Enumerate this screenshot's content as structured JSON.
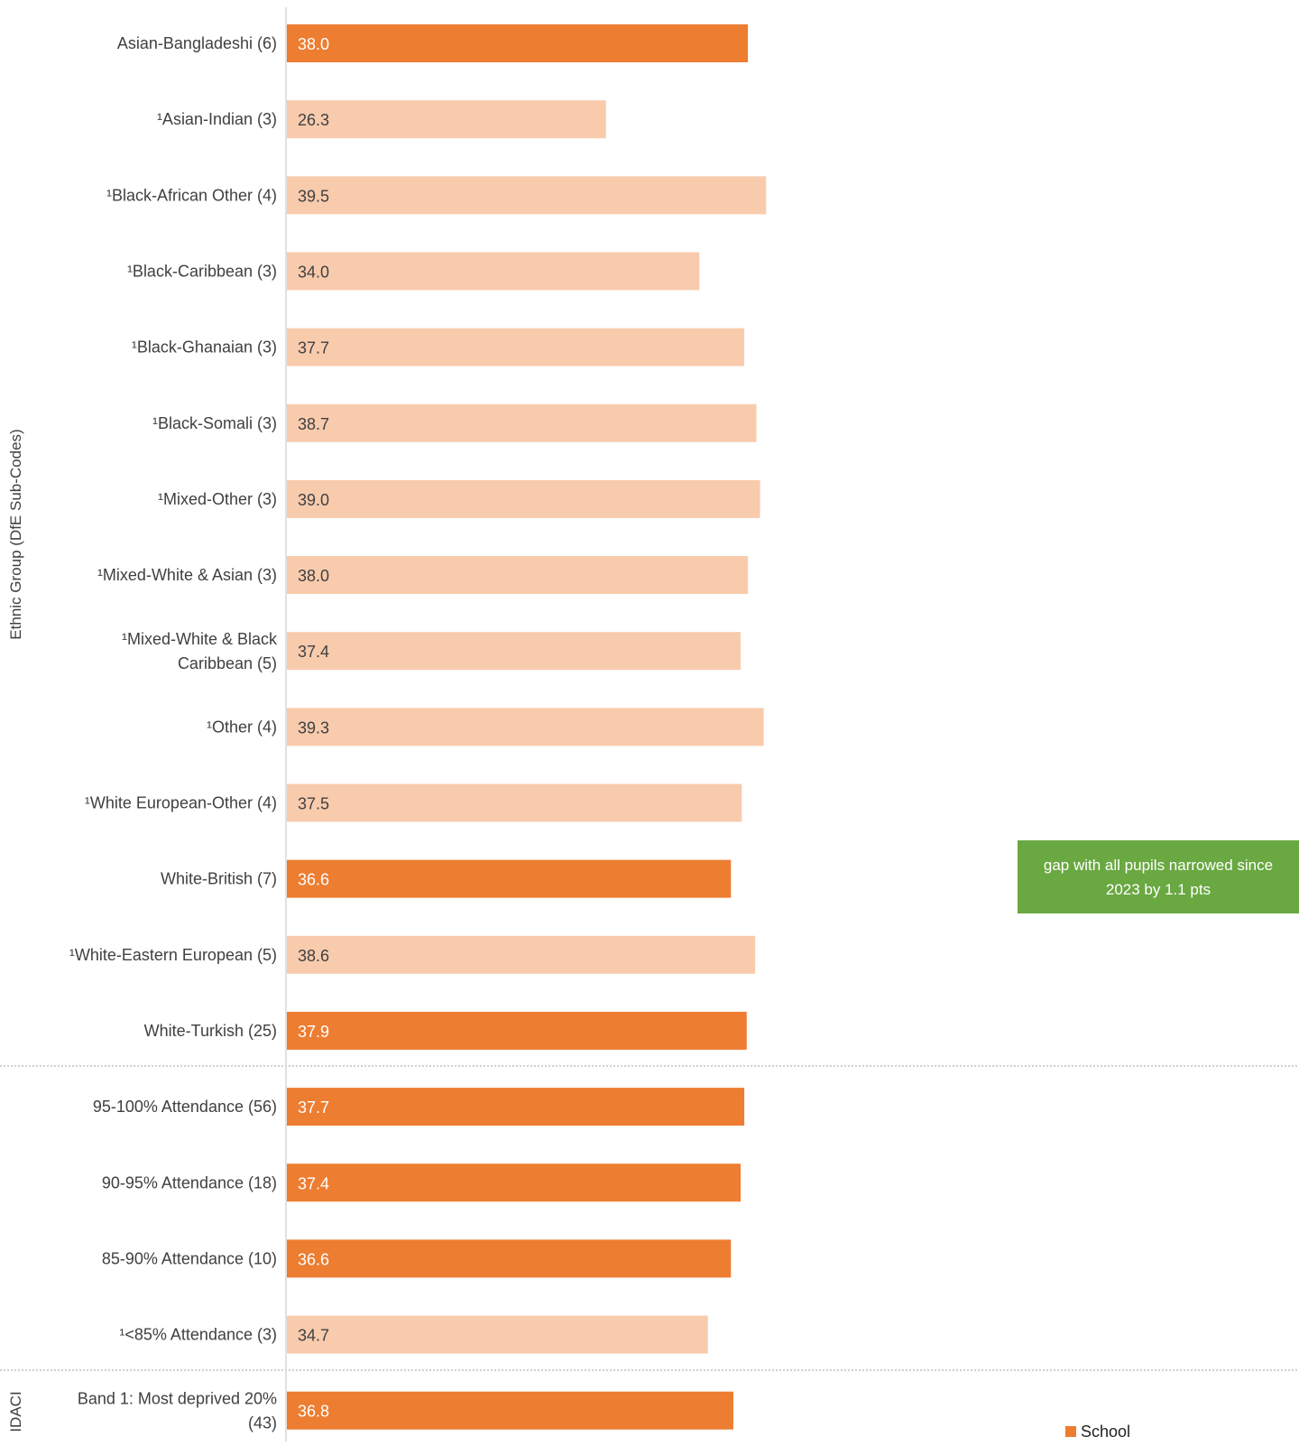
{
  "chart_data": {
    "type": "bar",
    "orientation": "horizontal",
    "xlim": [
      0,
      100
    ],
    "groups": [
      {
        "label": "Ethnic Group (DfE Sub-Codes)",
        "rows": [
          0,
          13
        ]
      },
      {
        "label": "",
        "rows": [
          14,
          17
        ]
      },
      {
        "label": "IDACI",
        "rows": [
          18,
          18
        ]
      }
    ],
    "categories": [
      [
        "Asian-Bangladeshi (6)"
      ],
      [
        "¹Asian-Indian (3)"
      ],
      [
        "¹Black-African Other (4)"
      ],
      [
        "¹Black-Caribbean (3)"
      ],
      [
        "¹Black-Ghanaian (3)"
      ],
      [
        "¹Black-Somali (3)"
      ],
      [
        "¹Mixed-Other (3)"
      ],
      [
        "¹Mixed-White & Asian (3)"
      ],
      [
        "¹Mixed-White & Black",
        "Caribbean (5)"
      ],
      [
        "¹Other (4)"
      ],
      [
        "¹White European-Other (4)"
      ],
      [
        "White-British (7)"
      ],
      [
        "¹White-Eastern European (5)"
      ],
      [
        "White-Turkish (25)"
      ],
      [
        "95-100% Attendance (56)"
      ],
      [
        "90-95% Attendance (18)"
      ],
      [
        "85-90% Attendance (10)"
      ],
      [
        "¹<85% Attendance (3)"
      ],
      [
        "Band 1: Most deprived 20%",
        "(43)"
      ]
    ],
    "series": [
      {
        "name": "School",
        "values": [
          38.0,
          26.3,
          39.5,
          34.0,
          37.7,
          38.7,
          39.0,
          38.0,
          37.4,
          39.3,
          37.5,
          36.6,
          38.6,
          37.9,
          37.7,
          37.4,
          36.6,
          34.7,
          36.8
        ],
        "data_labels": [
          "38.0",
          "26.3",
          "39.5",
          "34.0",
          "37.7",
          "38.7",
          "39.0",
          "38.0",
          "37.4",
          "39.3",
          "37.5",
          "36.6",
          "38.6",
          "37.9",
          "37.7",
          "37.4",
          "36.6",
          "34.7",
          "36.8"
        ],
        "small_sample": [
          false,
          true,
          true,
          true,
          true,
          true,
          true,
          true,
          true,
          true,
          true,
          false,
          true,
          false,
          false,
          false,
          false,
          true,
          false
        ]
      }
    ],
    "colors": {
      "school": "#ed7d31",
      "school_small_sample": "#f8cbad",
      "label_on_dark": "#ffffff",
      "label_on_light": "#404040",
      "axis_line": "#d9d9d9",
      "separator": "#bfbfbf",
      "category_text": "#404040"
    },
    "legend": {
      "position": "bottom-right",
      "entries": [
        "School"
      ]
    },
    "grid": false
  },
  "annotation": {
    "text": "gap with all pupils narrowed since 2023 by 1.1 pts",
    "background": "#6aa842"
  }
}
